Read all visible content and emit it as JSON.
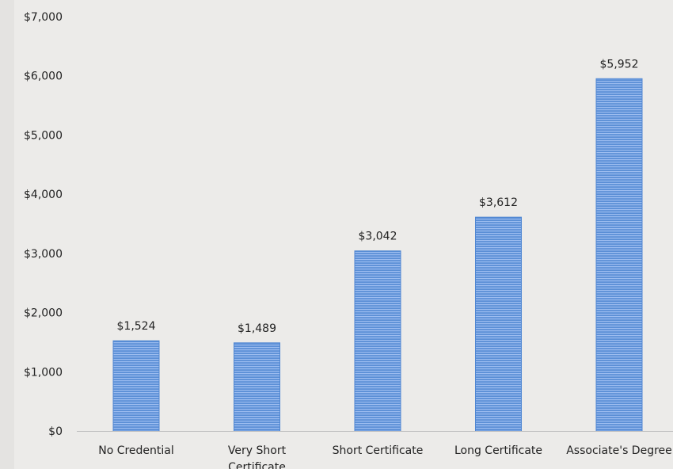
{
  "chart_data": {
    "type": "bar",
    "categories": [
      "No Credential",
      "Very Short Certificate",
      "Short Certificate",
      "Long Certificate",
      "Associate's Degree"
    ],
    "category_lines": [
      [
        "No Credential"
      ],
      [
        "Very Short",
        "Certificate"
      ],
      [
        "Short Certificate"
      ],
      [
        "Long Certificate"
      ],
      [
        "Associate's Degree"
      ]
    ],
    "values": [
      1524,
      1489,
      3042,
      3612,
      5952
    ],
    "data_labels": [
      "$1,524",
      "$1,489",
      "$3,042",
      "$3,612",
      "$5,952"
    ],
    "title": "",
    "xlabel": "",
    "ylabel": "",
    "ylim": [
      0,
      7000
    ],
    "y_ticks": [
      0,
      1000,
      2000,
      3000,
      4000,
      5000,
      6000,
      7000
    ],
    "y_tick_labels": [
      "$0",
      "$1,000",
      "$2,000",
      "$3,000",
      "$4,000",
      "$5,000",
      "$6,000",
      "$7,000"
    ],
    "grid": false,
    "legend": "none",
    "colors": {
      "bar": "#5b8fd6",
      "bar_stripe": "#8fb3ea",
      "axis": "#bfbfbf",
      "text": "#222222"
    }
  }
}
